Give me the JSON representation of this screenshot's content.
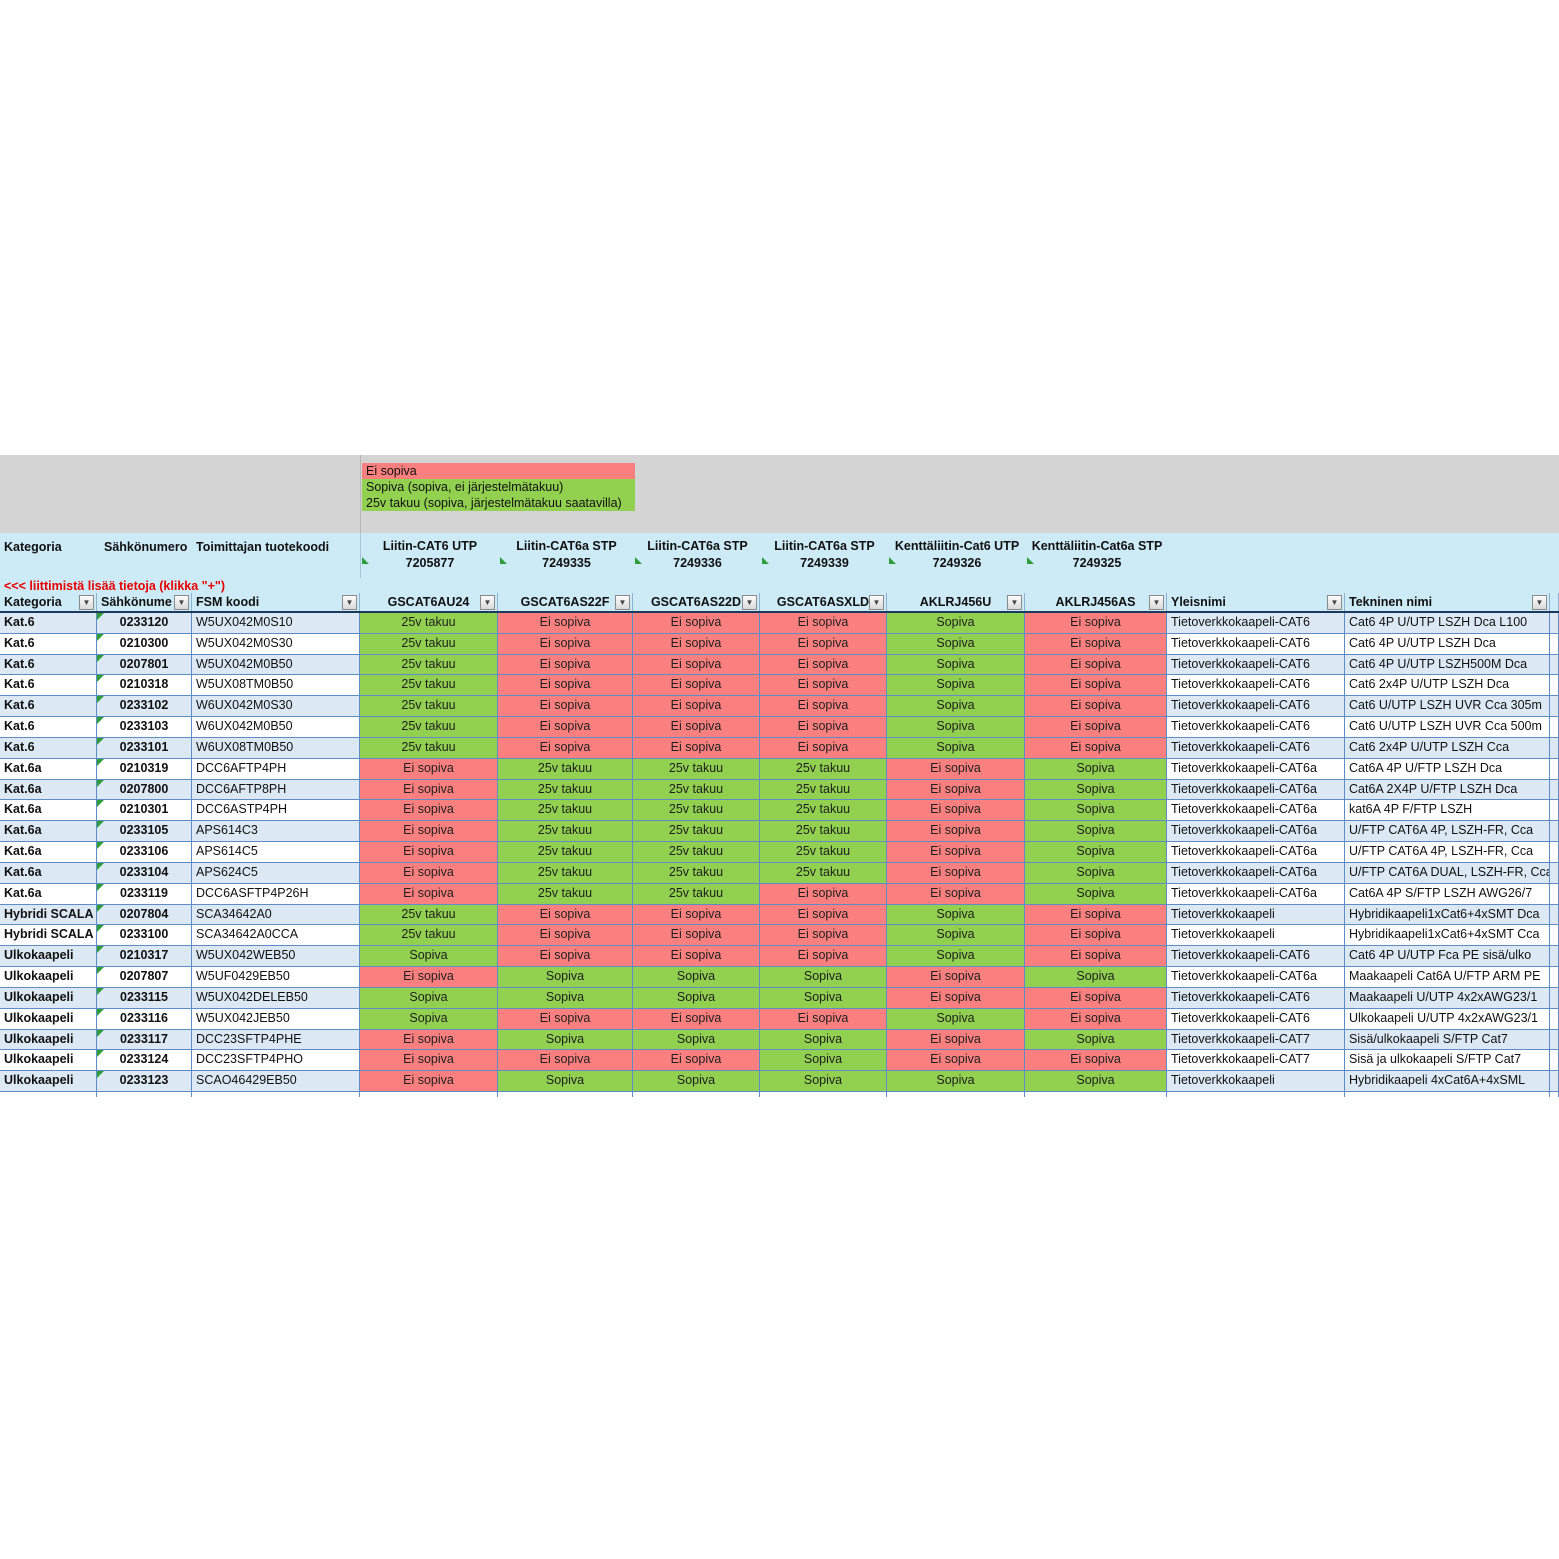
{
  "legend": {
    "items": [
      {
        "label": "Ei sopiva",
        "color": "#f9807f"
      },
      {
        "label": "Sopiva (sopiva, ei järjestelmätakuu)",
        "color": "#92d050"
      },
      {
        "label": "25v takuu (sopiva, järjestelmätakuu saatavilla)",
        "color": "#92d050"
      }
    ]
  },
  "note": "<<<  liittimistä lisää tietoja (klikka \"+\")",
  "header": {
    "left": [
      "Kategoria",
      "Sähkönumero",
      "Toimittajan tuotekoodi"
    ],
    "connectors": [
      {
        "name": "Liitin-CAT6 UTP",
        "number": "7205877"
      },
      {
        "name": "Liitin-CAT6a STP",
        "number": "7249335"
      },
      {
        "name": "Liitin-CAT6a STP",
        "number": "7249336"
      },
      {
        "name": "Liitin-CAT6a STP",
        "number": "7249339"
      },
      {
        "name": "Kenttäliitin-Cat6 UTP",
        "number": "7249326"
      },
      {
        "name": "Kenttäliitin-Cat6a STP",
        "number": "7249325"
      }
    ]
  },
  "filter_row": {
    "labels": [
      "Kategoria",
      "Sähkönume",
      "FSM koodi",
      "GSCAT6AU24",
      "GSCAT6AS22F",
      "GSCAT6AS22D",
      "GSCAT6ASXLD",
      "AKLRJ456U",
      "AKLRJ456AS",
      "Yleisnimi",
      "Tekninen nimi"
    ]
  },
  "status_colors": {
    "Ei sopiva": "#f9807f",
    "Sopiva": "#92d050",
    "25v takuu": "#92d050"
  },
  "rows": [
    {
      "kategoria": "Kat.6",
      "sahkonumero": "0233120",
      "fsm": "W5UX042M0S10",
      "statuses": [
        "25v takuu",
        "Ei sopiva",
        "Ei sopiva",
        "Ei sopiva",
        "Sopiva",
        "Ei sopiva"
      ],
      "yleisnimi": "Tietoverkkokaapeli-CAT6",
      "tekninen": "Cat6 4P U/UTP LSZH Dca L100"
    },
    {
      "kategoria": "Kat.6",
      "sahkonumero": "0210300",
      "fsm": "W5UX042M0S30",
      "statuses": [
        "25v takuu",
        "Ei sopiva",
        "Ei sopiva",
        "Ei sopiva",
        "Sopiva",
        "Ei sopiva"
      ],
      "yleisnimi": "Tietoverkkokaapeli-CAT6",
      "tekninen": "Cat6 4P U/UTP LSZH Dca"
    },
    {
      "kategoria": "Kat.6",
      "sahkonumero": "0207801",
      "fsm": "W5UX042M0B50",
      "statuses": [
        "25v takuu",
        "Ei sopiva",
        "Ei sopiva",
        "Ei sopiva",
        "Sopiva",
        "Ei sopiva"
      ],
      "yleisnimi": "Tietoverkkokaapeli-CAT6",
      "tekninen": "Cat6 4P U/UTP LSZH500M Dca"
    },
    {
      "kategoria": "Kat.6",
      "sahkonumero": "0210318",
      "fsm": "W5UX08TM0B50",
      "statuses": [
        "25v takuu",
        "Ei sopiva",
        "Ei sopiva",
        "Ei sopiva",
        "Sopiva",
        "Ei sopiva"
      ],
      "yleisnimi": "Tietoverkkokaapeli-CAT6",
      "tekninen": "Cat6 2x4P U/UTP LSZH Dca"
    },
    {
      "kategoria": "Kat.6",
      "sahkonumero": "0233102",
      "fsm": "W6UX042M0S30",
      "statuses": [
        "25v takuu",
        "Ei sopiva",
        "Ei sopiva",
        "Ei sopiva",
        "Sopiva",
        "Ei sopiva"
      ],
      "yleisnimi": "Tietoverkkokaapeli-CAT6",
      "tekninen": "Cat6 U/UTP LSZH UVR Cca 305m"
    },
    {
      "kategoria": "Kat.6",
      "sahkonumero": "0233103",
      "fsm": "W6UX042M0B50",
      "statuses": [
        "25v takuu",
        "Ei sopiva",
        "Ei sopiva",
        "Ei sopiva",
        "Sopiva",
        "Ei sopiva"
      ],
      "yleisnimi": "Tietoverkkokaapeli-CAT6",
      "tekninen": "Cat6 U/UTP LSZH UVR Cca 500m"
    },
    {
      "kategoria": "Kat.6",
      "sahkonumero": "0233101",
      "fsm": "W6UX08TM0B50",
      "statuses": [
        "25v takuu",
        "Ei sopiva",
        "Ei sopiva",
        "Ei sopiva",
        "Sopiva",
        "Ei sopiva"
      ],
      "yleisnimi": "Tietoverkkokaapeli-CAT6",
      "tekninen": "Cat6 2x4P U/UTP LSZH Cca"
    },
    {
      "kategoria": "Kat.6a",
      "sahkonumero": "0210319",
      "fsm": "DCC6AFTP4PH",
      "statuses": [
        "Ei sopiva",
        "25v takuu",
        "25v takuu",
        "25v takuu",
        "Ei sopiva",
        "Sopiva"
      ],
      "yleisnimi": "Tietoverkkokaapeli-CAT6a",
      "tekninen": "Cat6A 4P U/FTP LSZH Dca"
    },
    {
      "kategoria": "Kat.6a",
      "sahkonumero": "0207800",
      "fsm": "DCC6AFTP8PH",
      "statuses": [
        "Ei sopiva",
        "25v takuu",
        "25v takuu",
        "25v takuu",
        "Ei sopiva",
        "Sopiva"
      ],
      "yleisnimi": "Tietoverkkokaapeli-CAT6a",
      "tekninen": "Cat6A 2X4P U/FTP LSZH Dca"
    },
    {
      "kategoria": "Kat.6a",
      "sahkonumero": "0210301",
      "fsm": "DCC6ASTP4PH",
      "statuses": [
        "Ei sopiva",
        "25v takuu",
        "25v takuu",
        "25v takuu",
        "Ei sopiva",
        "Sopiva"
      ],
      "yleisnimi": "Tietoverkkokaapeli-CAT6a",
      "tekninen": "kat6A 4P F/FTP LSZH"
    },
    {
      "kategoria": "Kat.6a",
      "sahkonumero": "0233105",
      "fsm": "APS614C3",
      "statuses": [
        "Ei sopiva",
        "25v takuu",
        "25v takuu",
        "25v takuu",
        "Ei sopiva",
        "Sopiva"
      ],
      "yleisnimi": "Tietoverkkokaapeli-CAT6a",
      "tekninen": "U/FTP CAT6A 4P, LSZH-FR, Cca"
    },
    {
      "kategoria": "Kat.6a",
      "sahkonumero": "0233106",
      "fsm": "APS614C5",
      "statuses": [
        "Ei sopiva",
        "25v takuu",
        "25v takuu",
        "25v takuu",
        "Ei sopiva",
        "Sopiva"
      ],
      "yleisnimi": "Tietoverkkokaapeli-CAT6a",
      "tekninen": "U/FTP CAT6A 4P, LSZH-FR, Cca"
    },
    {
      "kategoria": "Kat.6a",
      "sahkonumero": "0233104",
      "fsm": "APS624C5",
      "statuses": [
        "Ei sopiva",
        "25v takuu",
        "25v takuu",
        "25v takuu",
        "Ei sopiva",
        "Sopiva"
      ],
      "yleisnimi": "Tietoverkkokaapeli-CAT6a",
      "tekninen": "U/FTP CAT6A DUAL, LSZH-FR, Cca"
    },
    {
      "kategoria": "Kat.6a",
      "sahkonumero": "0233119",
      "fsm": "DCC6ASFTP4P26H",
      "statuses": [
        "Ei sopiva",
        "25v takuu",
        "25v takuu",
        "Ei sopiva",
        "Ei sopiva",
        "Sopiva"
      ],
      "yleisnimi": "Tietoverkkokaapeli-CAT6a",
      "tekninen": "Cat6A 4P S/FTP LSZH AWG26/7"
    },
    {
      "kategoria": "Hybridi SCALA",
      "sahkonumero": "0207804",
      "fsm": "SCA34642A0",
      "statuses": [
        "25v takuu",
        "Ei sopiva",
        "Ei sopiva",
        "Ei sopiva",
        "Sopiva",
        "Ei sopiva"
      ],
      "yleisnimi": "Tietoverkkokaapeli",
      "tekninen": "Hybridikaapeli1xCat6+4xSMT Dca"
    },
    {
      "kategoria": "Hybridi SCALA",
      "sahkonumero": "0233100",
      "fsm": "SCA34642A0CCA",
      "statuses": [
        "25v takuu",
        "Ei sopiva",
        "Ei sopiva",
        "Ei sopiva",
        "Sopiva",
        "Ei sopiva"
      ],
      "yleisnimi": "Tietoverkkokaapeli",
      "tekninen": "Hybridikaapeli1xCat6+4xSMT Cca"
    },
    {
      "kategoria": "Ulkokaapeli",
      "sahkonumero": "0210317",
      "fsm": "W5UX042WEB50",
      "statuses": [
        "Sopiva",
        "Ei sopiva",
        "Ei sopiva",
        "Ei sopiva",
        "Sopiva",
        "Ei sopiva"
      ],
      "yleisnimi": "Tietoverkkokaapeli-CAT6",
      "tekninen": "Cat6 4P U/UTP Fca PE sisä/ulko"
    },
    {
      "kategoria": "Ulkokaapeli",
      "sahkonumero": "0207807",
      "fsm": "W5UF0429EB50",
      "statuses": [
        "Ei sopiva",
        "Sopiva",
        "Sopiva",
        "Sopiva",
        "Ei sopiva",
        "Sopiva"
      ],
      "yleisnimi": "Tietoverkkokaapeli-CAT6a",
      "tekninen": "Maakaapeli Cat6A U/FTP ARM PE"
    },
    {
      "kategoria": "Ulkokaapeli",
      "sahkonumero": "0233115",
      "fsm": "W5UX042DELEB50",
      "statuses": [
        "Sopiva",
        "Sopiva",
        "Sopiva",
        "Sopiva",
        "Ei sopiva",
        "Ei sopiva"
      ],
      "yleisnimi": "Tietoverkkokaapeli-CAT6",
      "tekninen": "Maakaapeli U/UTP 4x2xAWG23/1"
    },
    {
      "kategoria": "Ulkokaapeli",
      "sahkonumero": "0233116",
      "fsm": "W5UX042JEB50",
      "statuses": [
        "Sopiva",
        "Ei sopiva",
        "Ei sopiva",
        "Ei sopiva",
        "Sopiva",
        "Ei sopiva"
      ],
      "yleisnimi": "Tietoverkkokaapeli-CAT6",
      "tekninen": "Ulkokaapeli U/UTP 4x2xAWG23/1"
    },
    {
      "kategoria": "Ulkokaapeli",
      "sahkonumero": "0233117",
      "fsm": "DCC23SFTP4PHE",
      "statuses": [
        "Ei sopiva",
        "Sopiva",
        "Sopiva",
        "Sopiva",
        "Ei sopiva",
        "Sopiva"
      ],
      "yleisnimi": "Tietoverkkokaapeli-CAT7",
      "tekninen": "Sisä/ulkokaapeli S/FTP Cat7"
    },
    {
      "kategoria": "Ulkokaapeli",
      "sahkonumero": "0233124",
      "fsm": "DCC23SFTP4PHO",
      "statuses": [
        "Ei sopiva",
        "Ei sopiva",
        "Ei sopiva",
        "Sopiva",
        "Ei sopiva",
        "Ei sopiva"
      ],
      "yleisnimi": "Tietoverkkokaapeli-CAT7",
      "tekninen": "Sisä ja ulkokaapeli S/FTP Cat7"
    },
    {
      "kategoria": "Ulkokaapeli",
      "sahkonumero": "0233123",
      "fsm": "SCAO46429EB50",
      "statuses": [
        "Ei sopiva",
        "Sopiva",
        "Sopiva",
        "Sopiva",
        "Sopiva",
        "Sopiva"
      ],
      "yleisnimi": "Tietoverkkokaapeli",
      "tekninen": "Hybridikaapeli 4xCat6A+4xSML"
    }
  ]
}
